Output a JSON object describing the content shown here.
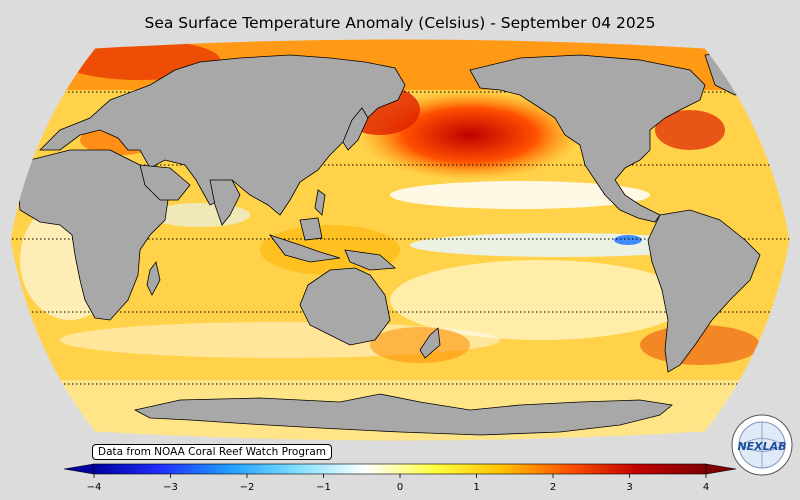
{
  "title": "Sea Surface Temperature Anomaly (Celsius) - September 04 2025",
  "credit": "Data from NOAA Coral Reef Watch Program",
  "colorbar": {
    "min": -4,
    "max": 4,
    "ticks": [
      "−4",
      "−3",
      "−2",
      "−1",
      "0",
      "1",
      "2",
      "3",
      "4"
    ],
    "stops": [
      "#0000a0",
      "#2030ff",
      "#20a0ff",
      "#80e0ff",
      "#ffffff",
      "#ffff40",
      "#ffc000",
      "#ff5000",
      "#c00000",
      "#800000"
    ]
  },
  "colors": {
    "background": "#dcdcdc",
    "land": "#a8a8a8",
    "ocean_base": "#ffd24a",
    "warm": "#e83a00",
    "hot": "#c00000",
    "cool": "#bfeeff",
    "cold": "#3080ff"
  },
  "logo": {
    "text": "NEXLAB",
    "icon": "nexlab-globe-logo"
  },
  "map": {
    "projection": "robinson",
    "center": "pacific",
    "gridlines": "dotted-latitudes"
  }
}
